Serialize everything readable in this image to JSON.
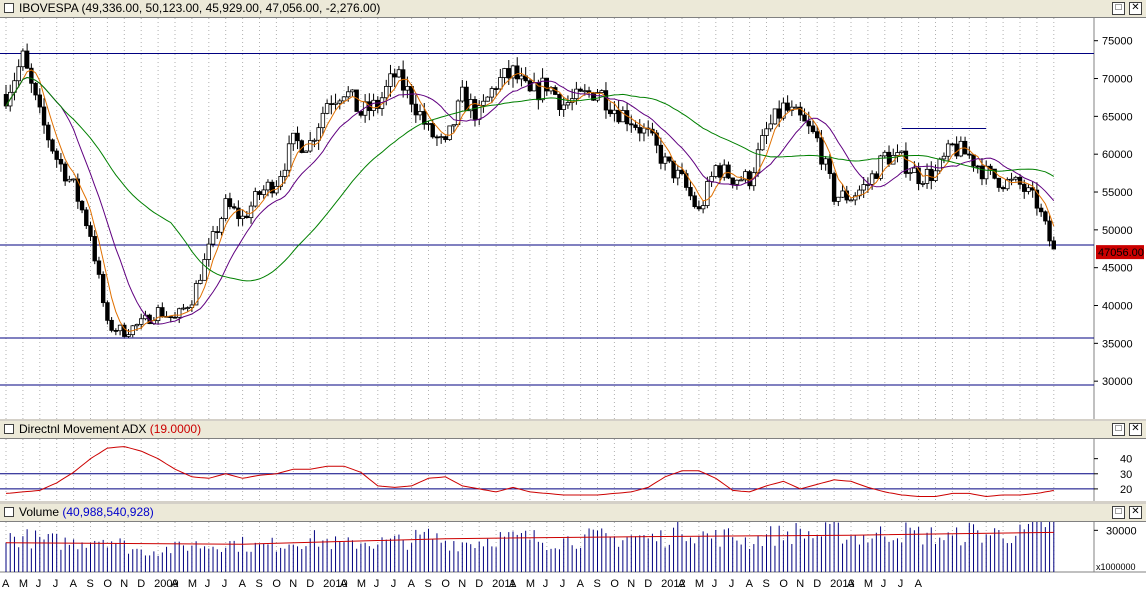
{
  "panes": {
    "price": {
      "title": "IBOVESPA",
      "ohlc": "(49,336.00, 50,123.00, 45,929.00, 47,056.00, -2,276.00)",
      "last_label": "47056.00"
    },
    "adx": {
      "title": "Directnl Movement ADX",
      "value": "(19.0000)"
    },
    "volume": {
      "title": "Volume",
      "value": "(40,988,540,928)",
      "scale": "x1000000"
    }
  },
  "window_buttons": {
    "maximize": "□",
    "close": "✕"
  },
  "x_axis_labels": [
    "A",
    "M",
    "J",
    "J",
    "A",
    "S",
    "O",
    "N",
    "D",
    "2009",
    "A",
    "M",
    "J",
    "J",
    "A",
    "S",
    "O",
    "N",
    "D",
    "2010",
    "A",
    "M",
    "J",
    "J",
    "A",
    "S",
    "O",
    "N",
    "D",
    "2011",
    "A",
    "M",
    "J",
    "J",
    "A",
    "S",
    "O",
    "N",
    "D",
    "2012",
    "A",
    "M",
    "J",
    "J",
    "A",
    "S",
    "O",
    "N",
    "D",
    "2013",
    "A",
    "M",
    "J",
    "J",
    "A"
  ],
  "colors": {
    "candle": "#000000",
    "ma_short": "#e07000",
    "ma_mid": "#600080",
    "ma_long": "#008000",
    "adx_line": "#cc0000",
    "reference_line": "#000080",
    "last_price_bg": "#cc0000"
  },
  "chart_data": [
    {
      "type": "candlestick",
      "series_name": "IBOVESPA",
      "frequency": "weekly",
      "ylim": [
        25000,
        78000
      ],
      "y_ticks": [
        "30000",
        "35000",
        "40000",
        "45000",
        "50000",
        "55000",
        "60000",
        "65000",
        "70000",
        "75000"
      ],
      "horizontal_lines": [
        73300,
        48000,
        35700,
        29500
      ],
      "trend_segment": {
        "from_month": "2012-09",
        "to_month": "2013-01",
        "value": 63400
      },
      "monthly_closes": [
        {
          "month": "2008-04",
          "close": 67900
        },
        {
          "month": "2008-05",
          "close": 72600
        },
        {
          "month": "2008-06",
          "close": 65000
        },
        {
          "month": "2008-07",
          "close": 59500
        },
        {
          "month": "2008-08",
          "close": 55700
        },
        {
          "month": "2008-09",
          "close": 49500
        },
        {
          "month": "2008-10",
          "close": 37300
        },
        {
          "month": "2008-11",
          "close": 36600
        },
        {
          "month": "2008-12",
          "close": 37600
        },
        {
          "month": "2009-01",
          "close": 39300
        },
        {
          "month": "2009-02",
          "close": 38200
        },
        {
          "month": "2009-03",
          "close": 40900
        },
        {
          "month": "2009-04",
          "close": 47300
        },
        {
          "month": "2009-05",
          "close": 53200
        },
        {
          "month": "2009-06",
          "close": 51500
        },
        {
          "month": "2009-07",
          "close": 54800
        },
        {
          "month": "2009-08",
          "close": 56500
        },
        {
          "month": "2009-09",
          "close": 61500
        },
        {
          "month": "2009-10",
          "close": 61500
        },
        {
          "month": "2009-11",
          "close": 67000
        },
        {
          "month": "2009-12",
          "close": 68600
        },
        {
          "month": "2010-01",
          "close": 65400
        },
        {
          "month": "2010-02",
          "close": 66500
        },
        {
          "month": "2010-03",
          "close": 70400
        },
        {
          "month": "2010-04",
          "close": 67500
        },
        {
          "month": "2010-05",
          "close": 63000
        },
        {
          "month": "2010-06",
          "close": 60900
        },
        {
          "month": "2010-07",
          "close": 67500
        },
        {
          "month": "2010-08",
          "close": 65100
        },
        {
          "month": "2010-09",
          "close": 69400
        },
        {
          "month": "2010-10",
          "close": 70700
        },
        {
          "month": "2010-11",
          "close": 67700
        },
        {
          "month": "2010-12",
          "close": 69300
        },
        {
          "month": "2011-01",
          "close": 66600
        },
        {
          "month": "2011-02",
          "close": 67400
        },
        {
          "month": "2011-03",
          "close": 68600
        },
        {
          "month": "2011-04",
          "close": 66100
        },
        {
          "month": "2011-05",
          "close": 64600
        },
        {
          "month": "2011-06",
          "close": 62400
        },
        {
          "month": "2011-07",
          "close": 58800
        },
        {
          "month": "2011-08",
          "close": 56500
        },
        {
          "month": "2011-09",
          "close": 52300
        },
        {
          "month": "2011-10",
          "close": 58300
        },
        {
          "month": "2011-11",
          "close": 56900
        },
        {
          "month": "2011-12",
          "close": 56800
        },
        {
          "month": "2012-01",
          "close": 63000
        },
        {
          "month": "2012-02",
          "close": 66100
        },
        {
          "month": "2012-03",
          "close": 64500
        },
        {
          "month": "2012-04",
          "close": 61800
        },
        {
          "month": "2012-05",
          "close": 54500
        },
        {
          "month": "2012-06",
          "close": 54400
        },
        {
          "month": "2012-07",
          "close": 56100
        },
        {
          "month": "2012-08",
          "close": 59800
        },
        {
          "month": "2012-09",
          "close": 59200
        },
        {
          "month": "2012-10",
          "close": 57100
        },
        {
          "month": "2012-11",
          "close": 57500
        },
        {
          "month": "2012-12",
          "close": 60900
        },
        {
          "month": "2013-01",
          "close": 59800
        },
        {
          "month": "2013-02",
          "close": 57400
        },
        {
          "month": "2013-03",
          "close": 56400
        },
        {
          "month": "2013-04",
          "close": 55900
        },
        {
          "month": "2013-05",
          "close": 53500
        },
        {
          "month": "2013-06",
          "close": 47056
        }
      ]
    },
    {
      "type": "line",
      "series_name": "Directnl Movement ADX",
      "ylim": [
        12,
        53
      ],
      "y_ticks": [
        "20",
        "30",
        "40"
      ],
      "horizontal_lines": [
        30,
        20
      ],
      "monthly_values": [
        {
          "month": "2008-04",
          "value": 17
        },
        {
          "month": "2008-05",
          "value": 18
        },
        {
          "month": "2008-06",
          "value": 19
        },
        {
          "month": "2008-07",
          "value": 24
        },
        {
          "month": "2008-08",
          "value": 31
        },
        {
          "month": "2008-09",
          "value": 40
        },
        {
          "month": "2008-10",
          "value": 47
        },
        {
          "month": "2008-11",
          "value": 48
        },
        {
          "month": "2008-12",
          "value": 45
        },
        {
          "month": "2009-01",
          "value": 40
        },
        {
          "month": "2009-02",
          "value": 33
        },
        {
          "month": "2009-03",
          "value": 28
        },
        {
          "month": "2009-04",
          "value": 27
        },
        {
          "month": "2009-05",
          "value": 30
        },
        {
          "month": "2009-06",
          "value": 27
        },
        {
          "month": "2009-07",
          "value": 29
        },
        {
          "month": "2009-08",
          "value": 30
        },
        {
          "month": "2009-09",
          "value": 33
        },
        {
          "month": "2009-10",
          "value": 33
        },
        {
          "month": "2009-11",
          "value": 35
        },
        {
          "month": "2009-12",
          "value": 35
        },
        {
          "month": "2010-01",
          "value": 31
        },
        {
          "month": "2010-02",
          "value": 22
        },
        {
          "month": "2010-03",
          "value": 21
        },
        {
          "month": "2010-04",
          "value": 22
        },
        {
          "month": "2010-05",
          "value": 27
        },
        {
          "month": "2010-06",
          "value": 28
        },
        {
          "month": "2010-07",
          "value": 22
        },
        {
          "month": "2010-08",
          "value": 20
        },
        {
          "month": "2010-09",
          "value": 18
        },
        {
          "month": "2010-10",
          "value": 21
        },
        {
          "month": "2010-11",
          "value": 18
        },
        {
          "month": "2010-12",
          "value": 17
        },
        {
          "month": "2011-01",
          "value": 16
        },
        {
          "month": "2011-02",
          "value": 16
        },
        {
          "month": "2011-03",
          "value": 16
        },
        {
          "month": "2011-04",
          "value": 17
        },
        {
          "month": "2011-05",
          "value": 18
        },
        {
          "month": "2011-06",
          "value": 21
        },
        {
          "month": "2011-07",
          "value": 28
        },
        {
          "month": "2011-08",
          "value": 32
        },
        {
          "month": "2011-09",
          "value": 32
        },
        {
          "month": "2011-10",
          "value": 27
        },
        {
          "month": "2011-11",
          "value": 19
        },
        {
          "month": "2011-12",
          "value": 18
        },
        {
          "month": "2012-01",
          "value": 22
        },
        {
          "month": "2012-02",
          "value": 25
        },
        {
          "month": "2012-03",
          "value": 20
        },
        {
          "month": "2012-04",
          "value": 23
        },
        {
          "month": "2012-05",
          "value": 26
        },
        {
          "month": "2012-06",
          "value": 25
        },
        {
          "month": "2012-07",
          "value": 21
        },
        {
          "month": "2012-08",
          "value": 18
        },
        {
          "month": "2012-09",
          "value": 16
        },
        {
          "month": "2012-10",
          "value": 15
        },
        {
          "month": "2012-11",
          "value": 15
        },
        {
          "month": "2012-12",
          "value": 17
        },
        {
          "month": "2013-01",
          "value": 17
        },
        {
          "month": "2013-02",
          "value": 15
        },
        {
          "month": "2013-03",
          "value": 16
        },
        {
          "month": "2013-04",
          "value": 16
        },
        {
          "month": "2013-05",
          "value": 17
        },
        {
          "month": "2013-06",
          "value": 19
        }
      ]
    },
    {
      "type": "bar",
      "series_name": "Volume",
      "unit": "x1000000",
      "ylim": [
        0,
        36000
      ],
      "y_ticks": [
        "30000"
      ],
      "last_value": 40988.540928,
      "avg_line_monthly": [
        {
          "month": "2008-04",
          "value": 21000
        },
        {
          "month": "2009-06",
          "value": 20000
        },
        {
          "month": "2010-06",
          "value": 24000
        },
        {
          "month": "2011-06",
          "value": 25500
        },
        {
          "month": "2012-06",
          "value": 26500
        },
        {
          "month": "2013-06",
          "value": 28500
        }
      ],
      "monthly_values": [
        {
          "month": "2008-04",
          "value": 24000
        },
        {
          "month": "2008-05",
          "value": 25000
        },
        {
          "month": "2008-06",
          "value": 23000
        },
        {
          "month": "2008-07",
          "value": 22000
        },
        {
          "month": "2008-08",
          "value": 21000
        },
        {
          "month": "2008-09",
          "value": 24000
        },
        {
          "month": "2008-10",
          "value": 25000
        },
        {
          "month": "2008-11",
          "value": 19000
        },
        {
          "month": "2008-12",
          "value": 15000
        },
        {
          "month": "2009-01",
          "value": 16000
        },
        {
          "month": "2009-02",
          "value": 17000
        },
        {
          "month": "2009-03",
          "value": 20000
        },
        {
          "month": "2009-04",
          "value": 19000
        },
        {
          "month": "2009-05",
          "value": 21000
        },
        {
          "month": "2009-06",
          "value": 20000
        },
        {
          "month": "2009-07",
          "value": 18000
        },
        {
          "month": "2009-08",
          "value": 20000
        },
        {
          "month": "2009-09",
          "value": 22000
        },
        {
          "month": "2009-10",
          "value": 24000
        },
        {
          "month": "2009-11",
          "value": 22000
        },
        {
          "month": "2009-12",
          "value": 19000
        },
        {
          "month": "2010-01",
          "value": 22000
        },
        {
          "month": "2010-02",
          "value": 21000
        },
        {
          "month": "2010-03",
          "value": 22000
        },
        {
          "month": "2010-04",
          "value": 23000
        },
        {
          "month": "2010-05",
          "value": 26000
        },
        {
          "month": "2010-06",
          "value": 22000
        },
        {
          "month": "2010-07",
          "value": 21000
        },
        {
          "month": "2010-08",
          "value": 22000
        },
        {
          "month": "2010-09",
          "value": 25000
        },
        {
          "month": "2010-10",
          "value": 24000
        },
        {
          "month": "2010-11",
          "value": 25000
        },
        {
          "month": "2010-12",
          "value": 22000
        },
        {
          "month": "2011-01",
          "value": 23000
        },
        {
          "month": "2011-02",
          "value": 24000
        },
        {
          "month": "2011-03",
          "value": 25000
        },
        {
          "month": "2011-04",
          "value": 24000
        },
        {
          "month": "2011-05",
          "value": 26000
        },
        {
          "month": "2011-06",
          "value": 24000
        },
        {
          "month": "2011-07",
          "value": 25000
        },
        {
          "month": "2011-08",
          "value": 33000
        },
        {
          "month": "2011-09",
          "value": 27000
        },
        {
          "month": "2011-10",
          "value": 25000
        },
        {
          "month": "2011-11",
          "value": 26000
        },
        {
          "month": "2011-12",
          "value": 22000
        },
        {
          "month": "2012-01",
          "value": 26000
        },
        {
          "month": "2012-02",
          "value": 27000
        },
        {
          "month": "2012-03",
          "value": 29000
        },
        {
          "month": "2012-04",
          "value": 26000
        },
        {
          "month": "2012-05",
          "value": 30000
        },
        {
          "month": "2012-06",
          "value": 26000
        },
        {
          "month": "2012-07",
          "value": 25000
        },
        {
          "month": "2012-08",
          "value": 28000
        },
        {
          "month": "2012-09",
          "value": 29000
        },
        {
          "month": "2012-10",
          "value": 27000
        },
        {
          "month": "2012-11",
          "value": 26000
        },
        {
          "month": "2012-12",
          "value": 24000
        },
        {
          "month": "2013-01",
          "value": 29000
        },
        {
          "month": "2013-02",
          "value": 27000
        },
        {
          "month": "2013-03",
          "value": 28000
        },
        {
          "month": "2013-04",
          "value": 27000
        },
        {
          "month": "2013-05",
          "value": 31000
        },
        {
          "month": "2013-06",
          "value": 41000
        }
      ]
    }
  ]
}
